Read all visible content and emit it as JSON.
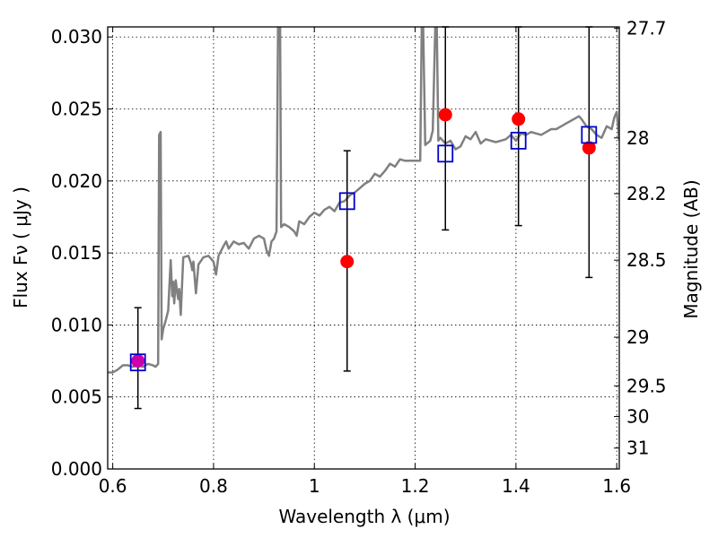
{
  "chart_data": {
    "type": "scatter",
    "xlabel": "Wavelength  λ (μm)",
    "ylabel": "Flux  Fν  ( μJy )",
    "ylabel_right": "Magnitude (AB)",
    "xlim": [
      0.59,
      1.605
    ],
    "ylim": [
      0.0,
      0.0307
    ],
    "grid": true,
    "x_ticks": [
      0.6,
      0.8,
      1.0,
      1.2,
      1.4,
      1.6
    ],
    "x_tick_labels": [
      "0.6",
      "0.8",
      "1",
      "1.2",
      "1.4",
      "1.6"
    ],
    "y_ticks": [
      0.0,
      0.005,
      0.01,
      0.015,
      0.02,
      0.025,
      0.03
    ],
    "y_tick_labels": [
      "0.000",
      "0.005",
      "0.010",
      "0.015",
      "0.020",
      "0.025",
      "0.030"
    ],
    "right_ticks": [
      {
        "label": "27.7",
        "flux": 0.0306
      },
      {
        "label": "28",
        "flux": 0.02299
      },
      {
        "label": "28.2",
        "flux": 0.01912
      },
      {
        "label": "28.5",
        "flux": 0.0145
      },
      {
        "label": "29",
        "flux": 0.00915
      },
      {
        "label": "29.5",
        "flux": 0.00577
      },
      {
        "label": "30",
        "flux": 0.00364
      },
      {
        "label": "31",
        "flux": 0.00145
      }
    ],
    "series": [
      {
        "kind": "model-spectrum-line",
        "color": "#808080",
        "points": [
          [
            0.59,
            0.0067
          ],
          [
            0.6,
            0.0067
          ],
          [
            0.61,
            0.0069
          ],
          [
            0.62,
            0.0072
          ],
          [
            0.63,
            0.0072
          ],
          [
            0.64,
            0.0071
          ],
          [
            0.65,
            0.0072
          ],
          [
            0.66,
            0.0071
          ],
          [
            0.67,
            0.0073
          ],
          [
            0.68,
            0.0072
          ],
          [
            0.685,
            0.0071
          ],
          [
            0.69,
            0.0073
          ],
          [
            0.692,
            0.0232
          ],
          [
            0.695,
            0.0234
          ],
          [
            0.697,
            0.009
          ],
          [
            0.7,
            0.0097
          ],
          [
            0.705,
            0.0103
          ],
          [
            0.71,
            0.011
          ],
          [
            0.715,
            0.0145
          ],
          [
            0.718,
            0.012
          ],
          [
            0.72,
            0.013
          ],
          [
            0.722,
            0.0115
          ],
          [
            0.725,
            0.0131
          ],
          [
            0.728,
            0.0122
          ],
          [
            0.73,
            0.0118
          ],
          [
            0.732,
            0.0125
          ],
          [
            0.735,
            0.0107
          ],
          [
            0.74,
            0.0147
          ],
          [
            0.75,
            0.0148
          ],
          [
            0.755,
            0.0143
          ],
          [
            0.758,
            0.0138
          ],
          [
            0.76,
            0.0144
          ],
          [
            0.765,
            0.0122
          ],
          [
            0.77,
            0.0142
          ],
          [
            0.78,
            0.0147
          ],
          [
            0.79,
            0.0148
          ],
          [
            0.8,
            0.0144
          ],
          [
            0.805,
            0.0135
          ],
          [
            0.81,
            0.0148
          ],
          [
            0.82,
            0.0155
          ],
          [
            0.825,
            0.0158
          ],
          [
            0.83,
            0.0153
          ],
          [
            0.84,
            0.0158
          ],
          [
            0.85,
            0.0156
          ],
          [
            0.86,
            0.0157
          ],
          [
            0.87,
            0.0153
          ],
          [
            0.88,
            0.016
          ],
          [
            0.89,
            0.0162
          ],
          [
            0.9,
            0.016
          ],
          [
            0.905,
            0.0152
          ],
          [
            0.91,
            0.0148
          ],
          [
            0.915,
            0.0158
          ],
          [
            0.92,
            0.016
          ],
          [
            0.925,
            0.0165
          ],
          [
            0.928,
            0.0307
          ],
          [
            0.932,
            0.0307
          ],
          [
            0.934,
            0.0168
          ],
          [
            0.94,
            0.017
          ],
          [
            0.95,
            0.0168
          ],
          [
            0.96,
            0.0165
          ],
          [
            0.965,
            0.0162
          ],
          [
            0.97,
            0.0172
          ],
          [
            0.98,
            0.017
          ],
          [
            0.99,
            0.0175
          ],
          [
            1.0,
            0.0178
          ],
          [
            1.01,
            0.0176
          ],
          [
            1.02,
            0.018
          ],
          [
            1.03,
            0.0182
          ],
          [
            1.04,
            0.0179
          ],
          [
            1.05,
            0.0185
          ],
          [
            1.06,
            0.0186
          ],
          [
            1.07,
            0.019
          ],
          [
            1.08,
            0.0192
          ],
          [
            1.09,
            0.0195
          ],
          [
            1.1,
            0.0198
          ],
          [
            1.11,
            0.02
          ],
          [
            1.12,
            0.0205
          ],
          [
            1.13,
            0.0203
          ],
          [
            1.14,
            0.0207
          ],
          [
            1.15,
            0.0212
          ],
          [
            1.16,
            0.021
          ],
          [
            1.17,
            0.0215
          ],
          [
            1.18,
            0.0214
          ],
          [
            1.19,
            0.0214
          ],
          [
            1.2,
            0.0214
          ],
          [
            1.21,
            0.0214
          ],
          [
            1.213,
            0.0307
          ],
          [
            1.216,
            0.0307
          ],
          [
            1.22,
            0.0225
          ],
          [
            1.23,
            0.0228
          ],
          [
            1.235,
            0.0235
          ],
          [
            1.24,
            0.0307
          ],
          [
            1.243,
            0.0307
          ],
          [
            1.246,
            0.0228
          ],
          [
            1.25,
            0.023
          ],
          [
            1.26,
            0.0226
          ],
          [
            1.27,
            0.0228
          ],
          [
            1.28,
            0.0222
          ],
          [
            1.29,
            0.0224
          ],
          [
            1.3,
            0.0231
          ],
          [
            1.31,
            0.0229
          ],
          [
            1.32,
            0.0234
          ],
          [
            1.33,
            0.0226
          ],
          [
            1.34,
            0.0229
          ],
          [
            1.35,
            0.0228
          ],
          [
            1.36,
            0.0227
          ],
          [
            1.37,
            0.0228
          ],
          [
            1.38,
            0.0229
          ],
          [
            1.39,
            0.0232
          ],
          [
            1.4,
            0.0228
          ],
          [
            1.41,
            0.0233
          ],
          [
            1.42,
            0.0232
          ],
          [
            1.43,
            0.0234
          ],
          [
            1.44,
            0.0233
          ],
          [
            1.45,
            0.0232
          ],
          [
            1.46,
            0.0234
          ],
          [
            1.47,
            0.0236
          ],
          [
            1.48,
            0.0236
          ],
          [
            1.49,
            0.0238
          ],
          [
            1.5,
            0.024
          ],
          [
            1.51,
            0.0242
          ],
          [
            1.52,
            0.0244
          ],
          [
            1.525,
            0.0245
          ],
          [
            1.53,
            0.0243
          ],
          [
            1.54,
            0.0238
          ],
          [
            1.55,
            0.0236
          ],
          [
            1.56,
            0.0232
          ],
          [
            1.57,
            0.023
          ],
          [
            1.58,
            0.0238
          ],
          [
            1.59,
            0.0236
          ],
          [
            1.595,
            0.0244
          ],
          [
            1.6,
            0.0248
          ],
          [
            1.605,
            0.0228
          ]
        ]
      },
      {
        "kind": "model-photometry",
        "marker": "open-square",
        "color": "#0000cc",
        "points": [
          [
            0.65,
            0.0074
          ],
          [
            1.065,
            0.0186
          ],
          [
            1.26,
            0.0219
          ],
          [
            1.405,
            0.0228
          ],
          [
            1.545,
            0.0232
          ]
        ]
      },
      {
        "kind": "observed-photometry",
        "marker": "filled-circle",
        "color": "#ff0000",
        "points": [
          {
            "x": 0.65,
            "y": 0.0075,
            "err_low": 0.0042,
            "err_high": 0.0112
          },
          {
            "x": 1.065,
            "y": 0.0144,
            "err_low": 0.0068,
            "err_high": 0.0221
          },
          {
            "x": 1.26,
            "y": 0.0246,
            "err_low": 0.0166,
            "err_high": 0.0307
          },
          {
            "x": 1.405,
            "y": 0.0243,
            "err_low": 0.0169,
            "err_high": 0.0307
          },
          {
            "x": 1.545,
            "y": 0.0223,
            "err_low": 0.0133,
            "err_high": 0.0307
          }
        ]
      }
    ],
    "colors": {
      "purple_overlap": "#cc00aa"
    }
  }
}
